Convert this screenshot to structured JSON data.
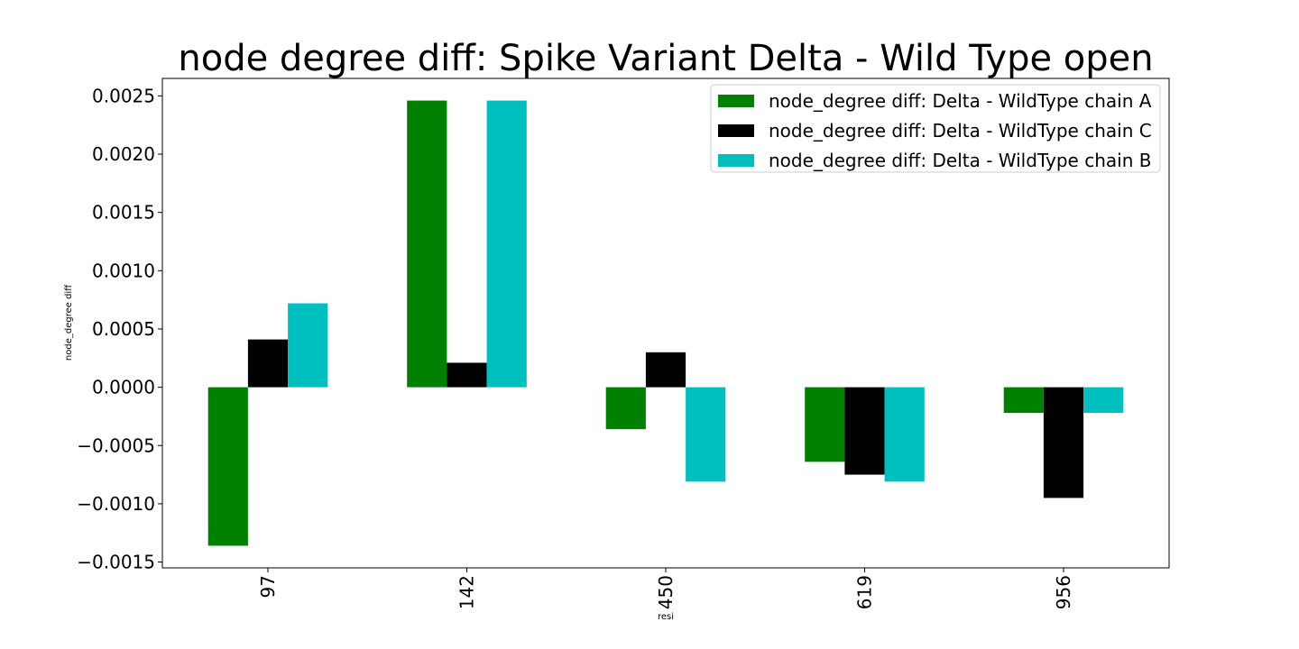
{
  "chart_data": {
    "type": "bar",
    "title": "node degree diff: Spike Variant Delta - Wild Type open",
    "xlabel": "resi",
    "ylabel": "node_degree diff",
    "categories": [
      "97",
      "142",
      "450",
      "619",
      "956"
    ],
    "ylim": [
      -0.00155,
      0.00265
    ],
    "yticks": [
      {
        "value": 0.0025,
        "label": "0.0025"
      },
      {
        "value": 0.002,
        "label": "0.0020"
      },
      {
        "value": 0.0015,
        "label": "0.0015"
      },
      {
        "value": 0.001,
        "label": "0.0010"
      },
      {
        "value": 0.0005,
        "label": "0.0005"
      },
      {
        "value": 0.0,
        "label": "0.0000"
      },
      {
        "value": -0.0005,
        "label": "−0.0005"
      },
      {
        "value": -0.001,
        "label": "−0.0010"
      },
      {
        "value": -0.0015,
        "label": "−0.0015"
      }
    ],
    "series": [
      {
        "name": "node_degree diff: Delta - WildType chain A",
        "color": "#008000",
        "values": [
          -0.00136,
          0.00246,
          -0.00036,
          -0.00064,
          -0.00022
        ]
      },
      {
        "name": "node_degree diff: Delta - WildType chain C",
        "color": "#000000",
        "values": [
          0.00041,
          0.00021,
          0.0003,
          -0.00075,
          -0.00095
        ]
      },
      {
        "name": "node_degree diff: Delta - WildType chain B",
        "color": "#00bfbf",
        "values": [
          0.00072,
          0.00246,
          -0.00081,
          -0.00081,
          -0.00022
        ]
      }
    ],
    "legend_position": "top-right",
    "grid": false
  }
}
